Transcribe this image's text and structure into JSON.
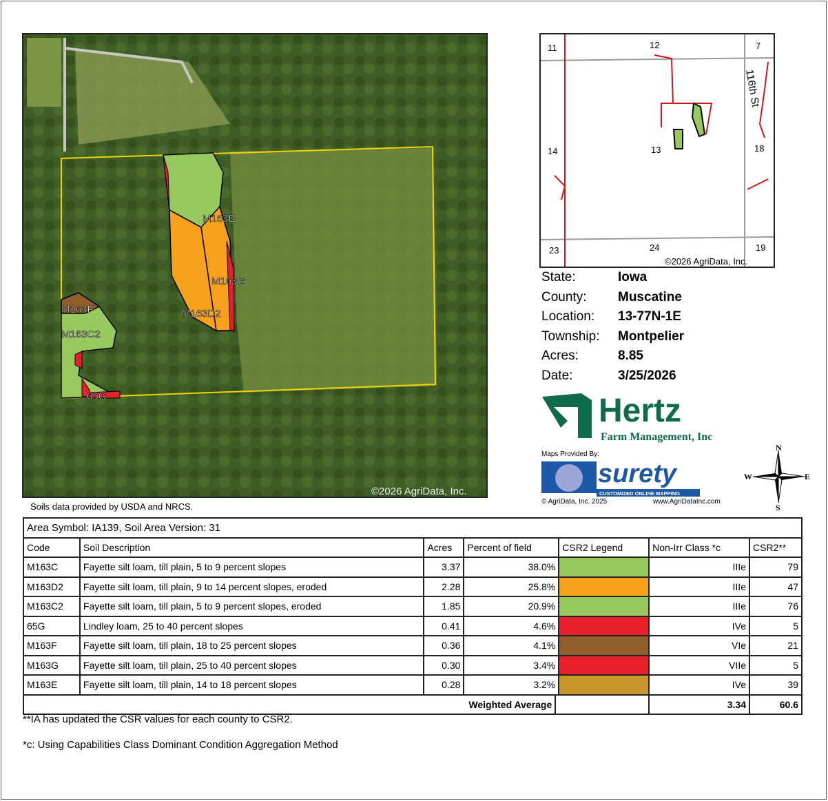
{
  "aerial": {
    "copyright": "©2026 AgriData, Inc.",
    "labels": [
      "M163E",
      "M163G",
      "M163D2",
      "M163F",
      "M163C2",
      "65G"
    ]
  },
  "soils_credit": "Soils data provided by USDA and NRCS.",
  "locator": {
    "sections": [
      "11",
      "12",
      "7",
      "14",
      "13",
      "18",
      "23",
      "24",
      "19"
    ],
    "road": "116th St",
    "copyright": "©2026 AgriData, Inc."
  },
  "info": [
    {
      "k": "State:",
      "v": "Iowa"
    },
    {
      "k": "County:",
      "v": "Muscatine"
    },
    {
      "k": "Location:",
      "v": "13-77N-1E"
    },
    {
      "k": "Township:",
      "v": "Montpelier"
    },
    {
      "k": "Acres:",
      "v": "8.85"
    },
    {
      "k": "Date:",
      "v": "3/25/2026"
    }
  ],
  "hertz": {
    "name": "Hertz",
    "sub": "Farm Management, Inc"
  },
  "surety": {
    "provided": "Maps Provided By:",
    "name": "surety",
    "tag": "CUSTOMIZED ONLINE MAPPING",
    "copy": "© AgriData, Inc. 2025",
    "url": "www.AgriDataInc.com"
  },
  "compass": {
    "n": "N",
    "s": "S",
    "e": "E",
    "w": "W"
  },
  "table": {
    "area": "Area Symbol: IA139, Soil Area Version: 31",
    "headers": [
      "Code",
      "Soil Description",
      "Acres",
      "Percent of field",
      "CSR2 Legend",
      "Non-Irr Class *c",
      "CSR2**"
    ],
    "rows": [
      {
        "code": "M163C",
        "desc": "Fayette silt loam, till plain, 5 to 9 percent slopes",
        "acres": "3.37",
        "pct": "38.0%",
        "color": "#97c95f",
        "cls": "IIIe",
        "csr": "79"
      },
      {
        "code": "M163D2",
        "desc": "Fayette silt loam, till plain, 9 to 14 percent slopes, eroded",
        "acres": "2.28",
        "pct": "25.8%",
        "color": "#f7a11c",
        "cls": "IIIe",
        "csr": "47"
      },
      {
        "code": "M163C2",
        "desc": "Fayette silt loam, till plain, 5 to 9 percent slopes, eroded",
        "acres": "1.85",
        "pct": "20.9%",
        "color": "#97c95f",
        "cls": "IIIe",
        "csr": "76"
      },
      {
        "code": "65G",
        "desc": "Lindley loam, 25 to 40 percent slopes",
        "acres": "0.41",
        "pct": "4.6%",
        "color": "#e8202a",
        "cls": "IVe",
        "csr": "5"
      },
      {
        "code": "M163F",
        "desc": "Fayette silt loam, till plain, 18 to 25 percent slopes",
        "acres": "0.36",
        "pct": "4.1%",
        "color": "#8f5e2a",
        "cls": "VIe",
        "csr": "21"
      },
      {
        "code": "M163G",
        "desc": "Fayette silt loam, till plain, 25 to 40 percent slopes",
        "acres": "0.30",
        "pct": "3.4%",
        "color": "#e8202a",
        "cls": "VIIe",
        "csr": "5"
      },
      {
        "code": "M163E",
        "desc": "Fayette silt loam, till plain, 14 to 18 percent slopes",
        "acres": "0.28",
        "pct": "3.2%",
        "color": "#c9962e",
        "cls": "IVe",
        "csr": "39"
      }
    ],
    "weighted_label": "Weighted Average",
    "weighted_cls": "3.34",
    "weighted_csr": "60.6"
  },
  "notes": [
    "**IA has updated the CSR values for each county to CSR2.",
    "*c: Using Capabilities Class Dominant Condition Aggregation Method"
  ]
}
